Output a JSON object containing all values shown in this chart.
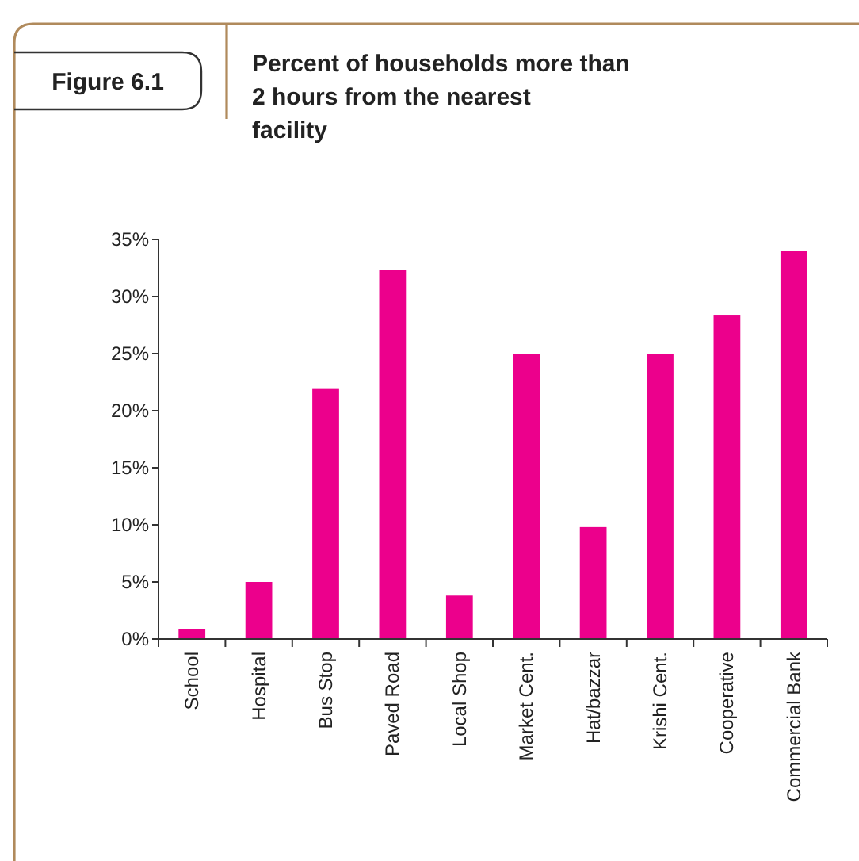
{
  "chart_data": {
    "type": "bar",
    "title": "Percent of households more than 2 hours from the nearest facility",
    "annotations": [
      "Figure 6.1"
    ],
    "categories": [
      "School",
      "Hospital",
      "Bus Stop",
      "Paved Road",
      "Local Shop",
      "Market Cent.",
      "Hat/bazzar",
      "Krishi Cent.",
      "Cooperative",
      "Commercial Bank"
    ],
    "values": [
      0.9,
      5,
      21.9,
      32.3,
      3.8,
      25,
      9.8,
      25,
      28.4,
      34
    ],
    "color": "#ec008c",
    "ylim": [
      0,
      35
    ],
    "yticks": [
      {
        "value": 0,
        "label": "0%"
      },
      {
        "value": 5,
        "label": "5%"
      },
      {
        "value": 10,
        "label": "10%"
      },
      {
        "value": 15,
        "label": "15%"
      },
      {
        "value": 20,
        "label": "20%"
      },
      {
        "value": 25,
        "label": "25%"
      },
      {
        "value": 30,
        "label": "30%"
      },
      {
        "value": 35,
        "label": "35%"
      }
    ],
    "grid": false
  }
}
